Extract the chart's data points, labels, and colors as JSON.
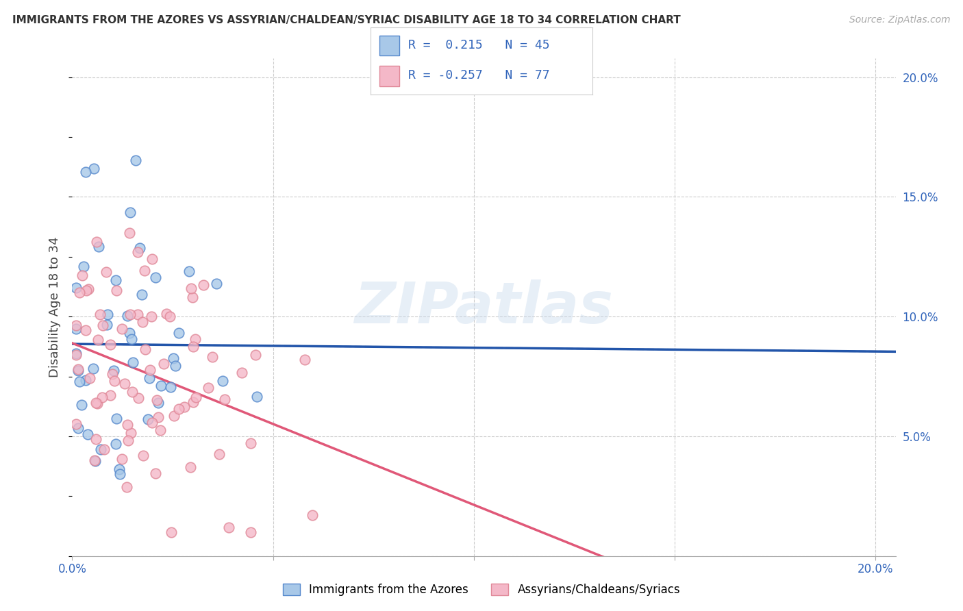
{
  "title": "IMMIGRANTS FROM THE AZORES VS ASSYRIAN/CHALDEAN/SYRIAC DISABILITY AGE 18 TO 34 CORRELATION CHART",
  "source": "Source: ZipAtlas.com",
  "ylabel": "Disability Age 18 to 34",
  "xmin": 0.0,
  "xmax": 0.205,
  "ymin": 0.0,
  "ymax": 0.208,
  "r1": 0.215,
  "n1": 45,
  "r2": -0.257,
  "n2": 77,
  "color_blue_fill": "#a8c8e8",
  "color_blue_edge": "#5588cc",
  "color_pink_fill": "#f4b8c8",
  "color_pink_edge": "#e08898",
  "color_blue_line": "#2255aa",
  "color_pink_line": "#e05878",
  "color_dash": "#c0c8d8",
  "watermark": "ZIPatlas",
  "legend_label1": "Immigrants from the Azores",
  "legend_label2": "Assyrians/Chaldeans/Syriacs",
  "seed": 42
}
